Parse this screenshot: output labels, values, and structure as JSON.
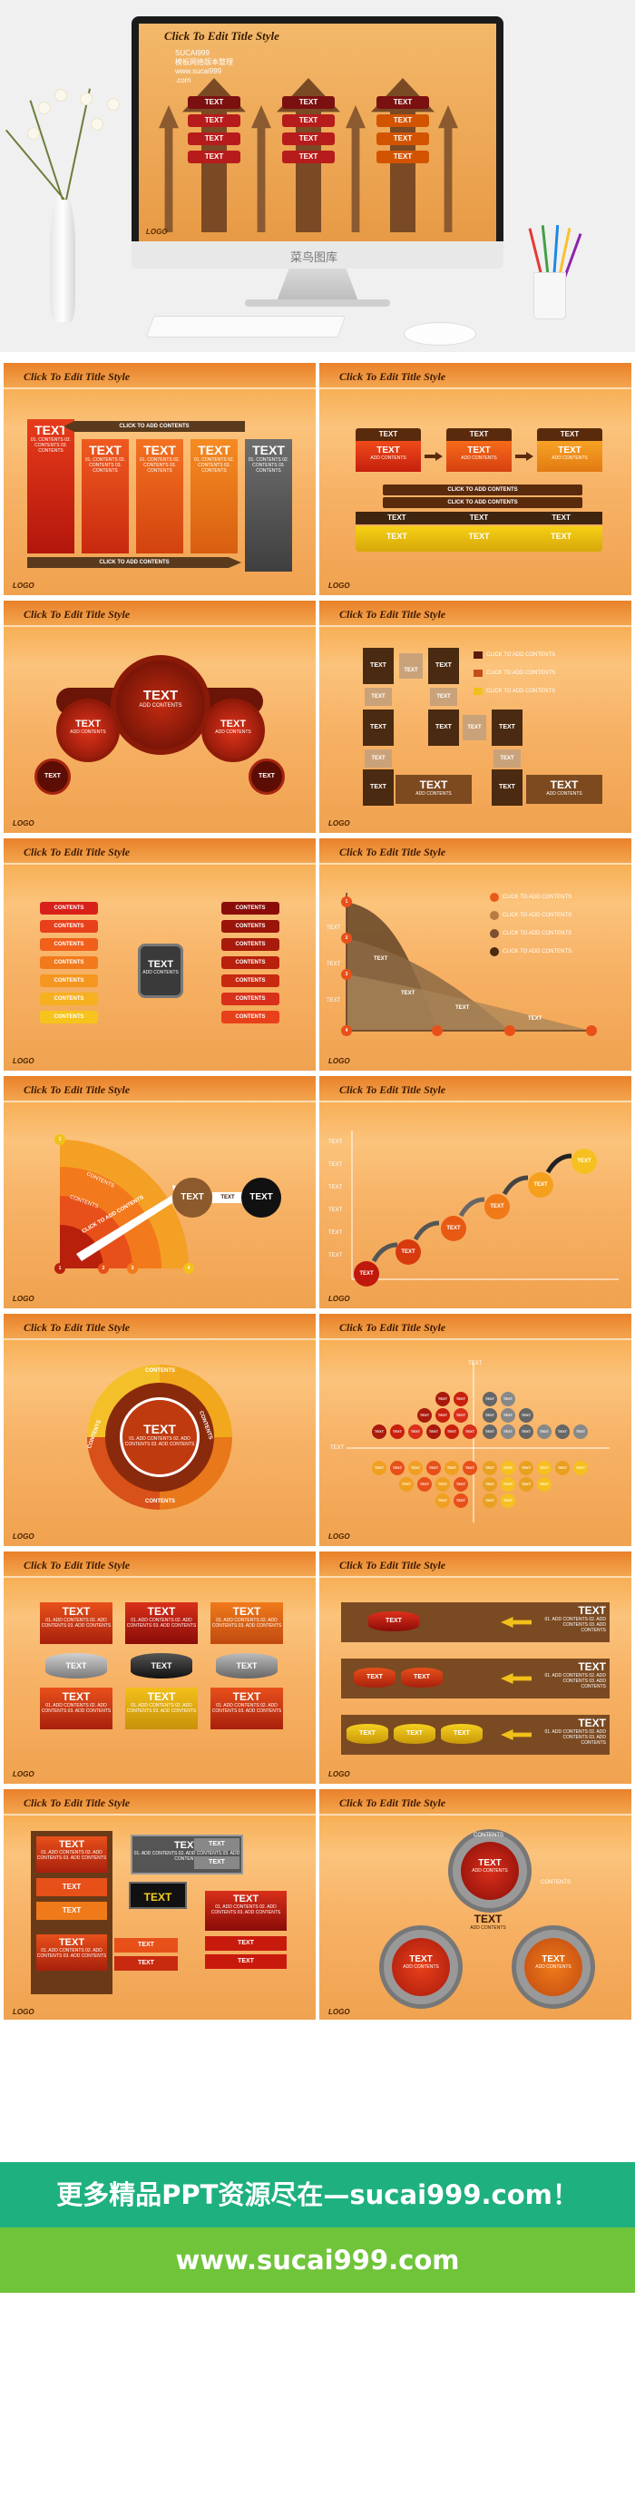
{
  "hero": {
    "slide_title": "Click To Edit Title Style",
    "sub_lines": [
      "SUCAI999",
      "模板网络版本整理",
      "www.sucai999",
      ".com"
    ],
    "logo": "LOGO",
    "box_label": "TEXT",
    "watermark": "菜鸟图库"
  },
  "slides": {
    "title": "Click To Edit Title Style",
    "logo": "LOGO",
    "logo_small": "ADD YOUR COMPANY SLOGAN",
    "text": "TEXT",
    "contents": "CONTENTS",
    "add_contents": "ADD CONTENTS",
    "click_add": "CLICK TO ADD CONTENTS",
    "content_lines": "01. CONTENTS 02. CONTENTS 03. CONTENTS",
    "add_lines": "01. ADD CONTENTS 02. ADD CONTENTS 03. ADD CONTENTS",
    "numbers": [
      "1",
      "2",
      "3",
      "4"
    ]
  },
  "footer": {
    "banner_main": "更多精品PPT资源尽在—sucai999.com！",
    "banner_url": "www.sucai999.com"
  },
  "colors": {
    "orange_bg": "#f7b266",
    "banner_green": "#1fb07f",
    "banner_lime": "#70c43a",
    "dark_red": "#8b1a0e",
    "gold": "#f2b619"
  }
}
